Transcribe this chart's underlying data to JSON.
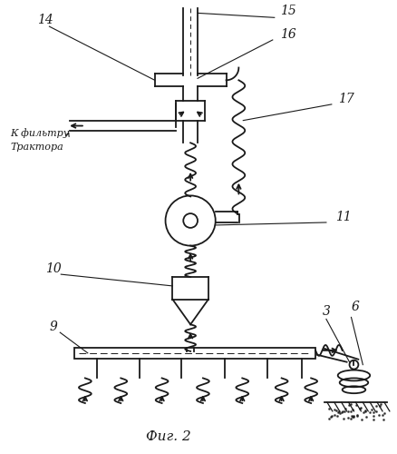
{
  "title": "Фиг. 2",
  "bg_color": "#ffffff",
  "line_color": "#1a1a1a",
  "filter_text": [
    "К фильтру",
    "Трактора"
  ]
}
